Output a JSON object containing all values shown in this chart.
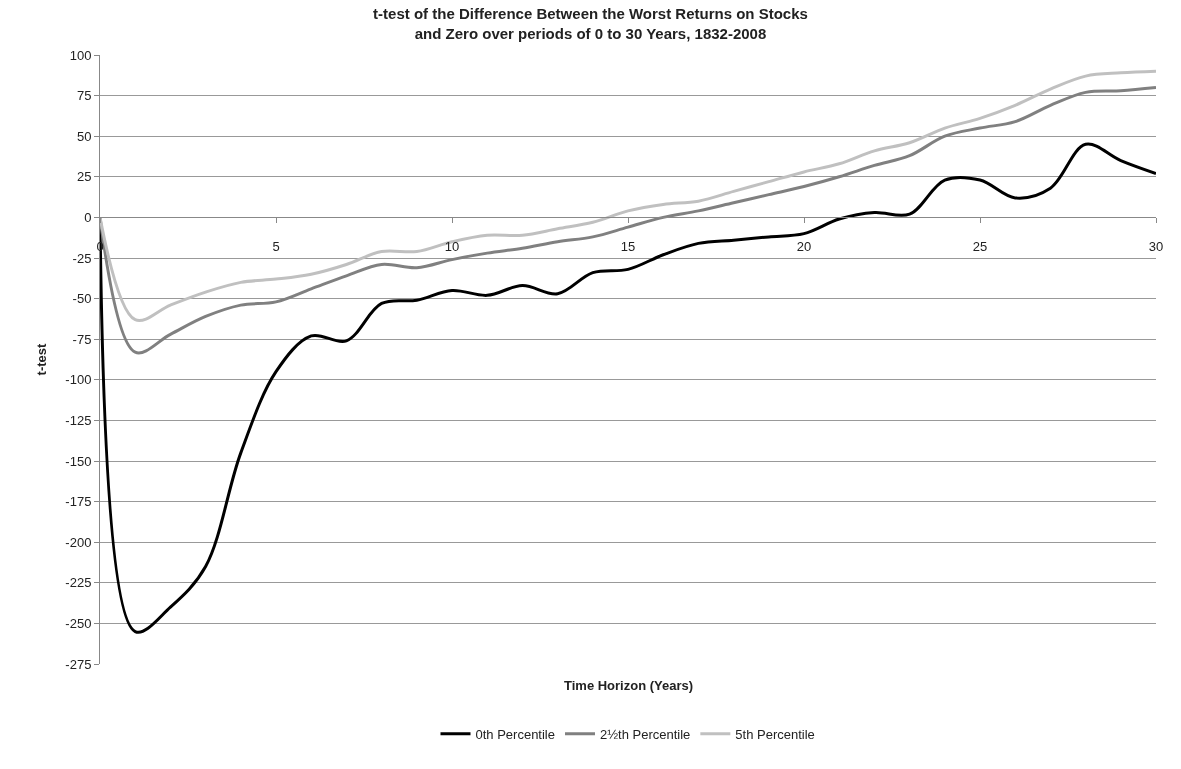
{
  "chart_data": {
    "type": "line",
    "title": "t-test of the Difference Between the Worst Returns on Stocks\nand Zero over periods of 0 to 30 Years, 1832-2008",
    "xlabel": "Time Horizon (Years)",
    "ylabel": "t-test",
    "x": [
      0,
      1,
      2,
      3,
      4,
      5,
      6,
      7,
      8,
      9,
      10,
      11,
      12,
      13,
      14,
      15,
      16,
      17,
      18,
      19,
      20,
      21,
      22,
      23,
      24,
      25,
      26,
      27,
      28,
      29,
      30
    ],
    "series": [
      {
        "name": "0th Percentile",
        "color": "#000000",
        "values": [
          0,
          -255,
          -240,
          -215,
          -145,
          -95,
          -73,
          -76,
          -53,
          -51,
          -45,
          -48,
          -42,
          -47,
          -34,
          -32,
          -23,
          -16,
          -14,
          -12,
          -10,
          -1,
          3,
          2,
          23,
          23,
          12,
          18,
          45,
          35,
          27
        ]
      },
      {
        "name": "2½th Percentile",
        "color": "#808080",
        "values": [
          0,
          -83,
          -72,
          -61,
          -54,
          -52,
          -44,
          -36,
          -29,
          -31,
          -26,
          -22,
          -19,
          -15,
          -12,
          -6,
          0,
          4,
          9,
          14,
          19,
          25,
          32,
          38,
          50,
          55,
          59,
          69,
          77,
          78,
          80
        ]
      },
      {
        "name": "5th Percentile",
        "color": "#c0c0c0",
        "values": [
          0,
          -63,
          -54,
          -46,
          -40,
          -38,
          -35,
          -29,
          -21,
          -21,
          -15,
          -11,
          -11,
          -7,
          -3,
          4,
          8,
          10,
          16,
          22,
          28,
          33,
          41,
          46,
          55,
          61,
          69,
          79,
          87,
          89,
          90
        ]
      }
    ],
    "xlim": [
      0,
      30
    ],
    "xticks": [
      0,
      5,
      10,
      15,
      20,
      25,
      30
    ],
    "ylim": [
      -275,
      100
    ],
    "yticks": [
      -275,
      -250,
      -225,
      -200,
      -175,
      -150,
      -125,
      -100,
      -75,
      -50,
      -25,
      0,
      25,
      50,
      75,
      100
    ],
    "grid": "y",
    "legend": "bottom",
    "marker": "none",
    "line_style": "solid"
  }
}
